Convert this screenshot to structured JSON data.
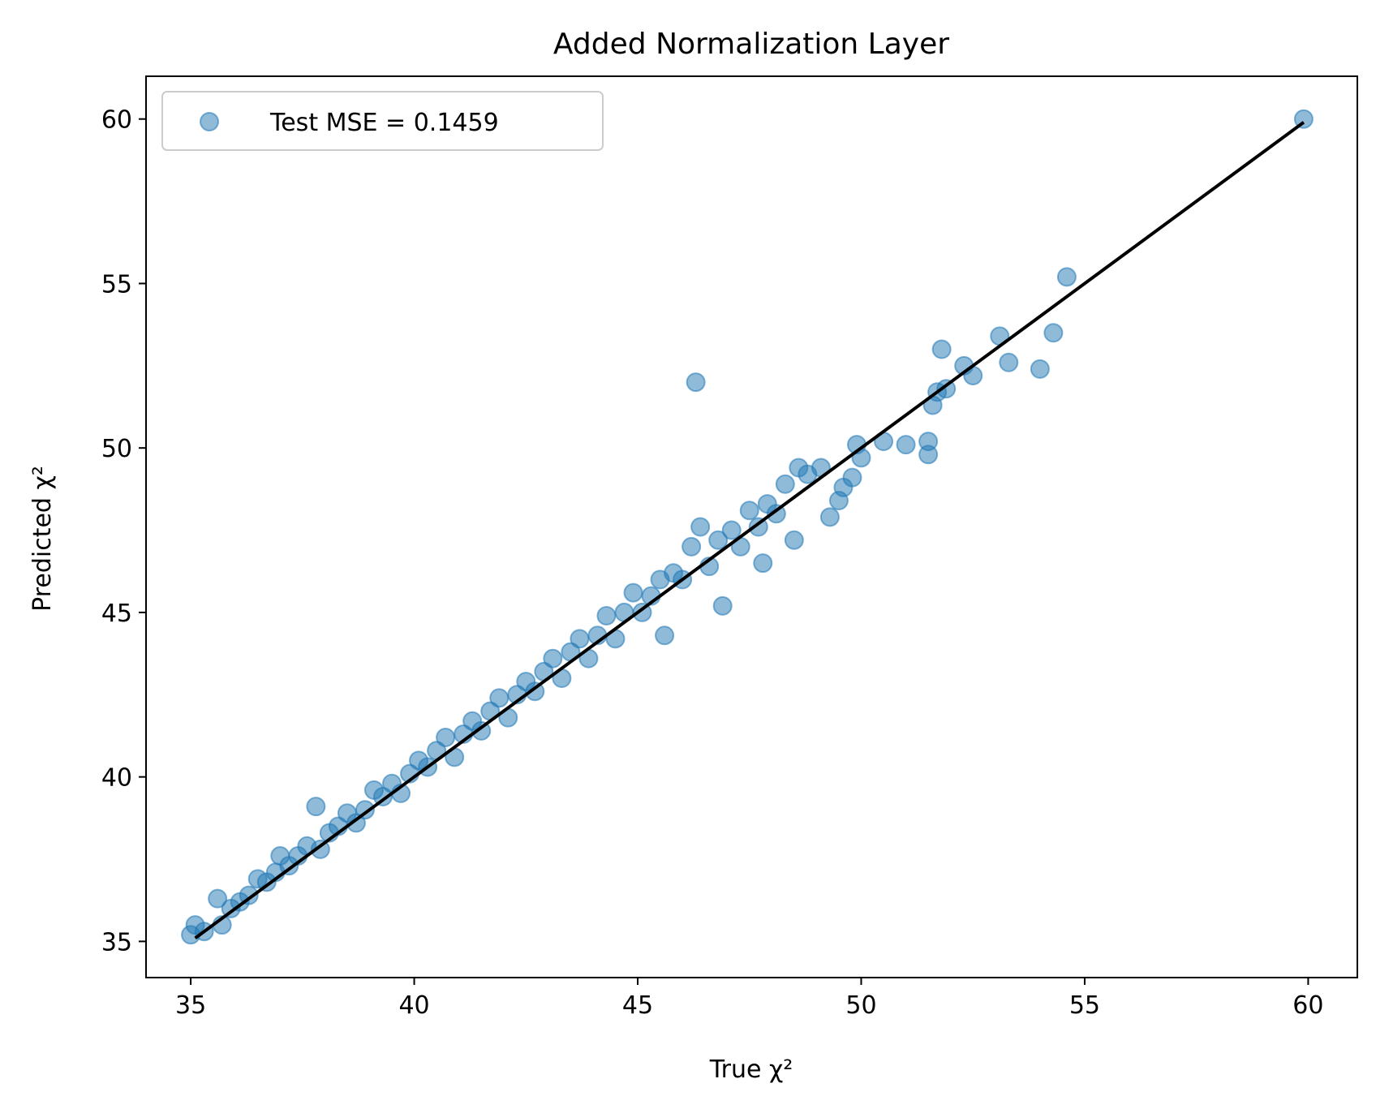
{
  "chart_data": {
    "type": "scatter",
    "title": "Added Normalization Layer",
    "xlabel": "True χ²",
    "ylabel": "Predicted χ²",
    "xlim": [
      34,
      61.1
    ],
    "ylim": [
      33.9,
      61.3
    ],
    "xticks": [
      35,
      40,
      45,
      50,
      55,
      60
    ],
    "yticks": [
      35,
      40,
      45,
      50,
      55,
      60
    ],
    "grid": false,
    "legend_position": "top-left",
    "colors": {
      "points": "#1f77b4",
      "line": "#000000"
    },
    "series": [
      {
        "name": "Test MSE = 0.1459",
        "kind": "scatter",
        "points": [
          [
            35.0,
            35.2
          ],
          [
            35.1,
            35.5
          ],
          [
            35.3,
            35.3
          ],
          [
            35.6,
            36.3
          ],
          [
            35.7,
            35.5
          ],
          [
            35.9,
            36.0
          ],
          [
            36.1,
            36.2
          ],
          [
            36.3,
            36.4
          ],
          [
            36.5,
            36.9
          ],
          [
            36.7,
            36.8
          ],
          [
            36.9,
            37.1
          ],
          [
            37.0,
            37.6
          ],
          [
            37.2,
            37.3
          ],
          [
            37.4,
            37.6
          ],
          [
            37.6,
            37.9
          ],
          [
            37.8,
            39.1
          ],
          [
            37.9,
            37.8
          ],
          [
            38.1,
            38.3
          ],
          [
            38.3,
            38.5
          ],
          [
            38.5,
            38.9
          ],
          [
            38.7,
            38.6
          ],
          [
            38.9,
            39.0
          ],
          [
            39.1,
            39.6
          ],
          [
            39.3,
            39.4
          ],
          [
            39.5,
            39.8
          ],
          [
            39.7,
            39.5
          ],
          [
            39.9,
            40.1
          ],
          [
            40.1,
            40.5
          ],
          [
            40.3,
            40.3
          ],
          [
            40.5,
            40.8
          ],
          [
            40.7,
            41.2
          ],
          [
            40.9,
            40.6
          ],
          [
            41.1,
            41.3
          ],
          [
            41.3,
            41.7
          ],
          [
            41.5,
            41.4
          ],
          [
            41.7,
            42.0
          ],
          [
            41.9,
            42.4
          ],
          [
            42.1,
            41.8
          ],
          [
            42.3,
            42.5
          ],
          [
            42.5,
            42.9
          ],
          [
            42.7,
            42.6
          ],
          [
            42.9,
            43.2
          ],
          [
            43.1,
            43.6
          ],
          [
            43.3,
            43.0
          ],
          [
            43.5,
            43.8
          ],
          [
            43.7,
            44.2
          ],
          [
            43.9,
            43.6
          ],
          [
            44.1,
            44.3
          ],
          [
            44.3,
            44.9
          ],
          [
            44.5,
            44.2
          ],
          [
            44.7,
            45.0
          ],
          [
            44.9,
            45.6
          ],
          [
            45.1,
            45.0
          ],
          [
            45.3,
            45.5
          ],
          [
            45.5,
            46.0
          ],
          [
            45.6,
            44.3
          ],
          [
            45.8,
            46.2
          ],
          [
            46.0,
            46.0
          ],
          [
            46.2,
            47.0
          ],
          [
            46.3,
            52.0
          ],
          [
            46.4,
            47.6
          ],
          [
            46.6,
            46.4
          ],
          [
            46.8,
            47.2
          ],
          [
            46.9,
            45.2
          ],
          [
            47.1,
            47.5
          ],
          [
            47.3,
            47.0
          ],
          [
            47.5,
            48.1
          ],
          [
            47.7,
            47.6
          ],
          [
            47.8,
            46.5
          ],
          [
            47.9,
            48.3
          ],
          [
            48.1,
            48.0
          ],
          [
            48.3,
            48.9
          ],
          [
            48.5,
            47.2
          ],
          [
            48.6,
            49.4
          ],
          [
            48.8,
            49.2
          ],
          [
            49.1,
            49.4
          ],
          [
            49.3,
            47.9
          ],
          [
            49.5,
            48.4
          ],
          [
            49.6,
            48.8
          ],
          [
            49.8,
            49.1
          ],
          [
            49.9,
            50.1
          ],
          [
            50.0,
            49.7
          ],
          [
            50.5,
            50.2
          ],
          [
            51.0,
            50.1
          ],
          [
            51.5,
            49.8
          ],
          [
            51.5,
            50.2
          ],
          [
            51.6,
            51.3
          ],
          [
            51.7,
            51.7
          ],
          [
            51.8,
            53.0
          ],
          [
            51.9,
            51.8
          ],
          [
            52.3,
            52.5
          ],
          [
            52.5,
            52.2
          ],
          [
            53.1,
            53.4
          ],
          [
            53.3,
            52.6
          ],
          [
            54.0,
            52.4
          ],
          [
            54.3,
            53.5
          ],
          [
            54.6,
            55.2
          ],
          [
            59.9,
            60.0
          ]
        ]
      },
      {
        "kind": "line",
        "points": [
          [
            35.1,
            35.1
          ],
          [
            59.9,
            59.9
          ]
        ]
      }
    ]
  }
}
